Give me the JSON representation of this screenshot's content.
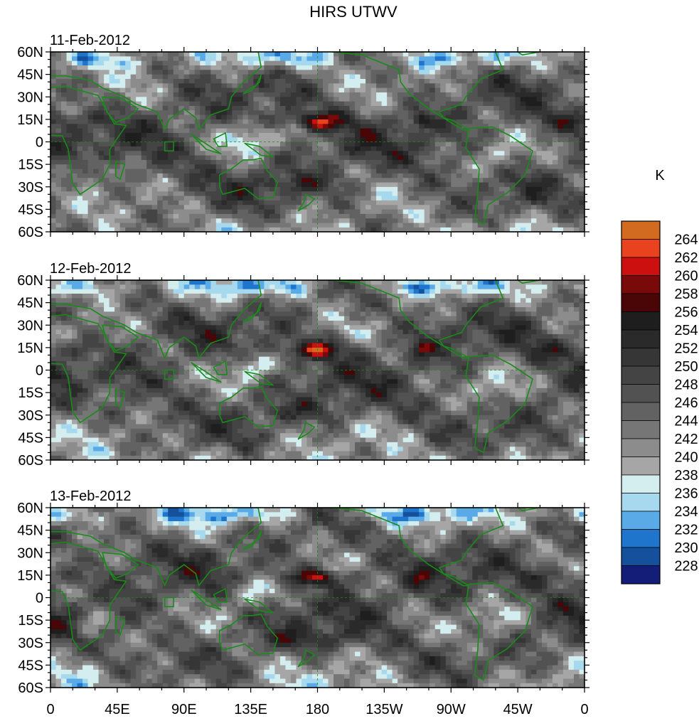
{
  "chart_data": {
    "type": "heatmap",
    "title": "HIRS UTWV",
    "units_label": "K",
    "panels": [
      {
        "date": "11-Feb-2012"
      },
      {
        "date": "12-Feb-2012"
      },
      {
        "date": "13-Feb-2012"
      }
    ],
    "x_ticks": [
      "0",
      "45E",
      "90E",
      "135E",
      "180",
      "135W",
      "90W",
      "45W",
      "0"
    ],
    "x_tick_values": [
      0,
      45,
      90,
      135,
      180,
      225,
      270,
      315,
      360
    ],
    "y_ticks": [
      "60N",
      "45N",
      "30N",
      "15N",
      "0",
      "15S",
      "30S",
      "45S",
      "60S"
    ],
    "y_tick_values": [
      60,
      45,
      30,
      15,
      0,
      -15,
      -30,
      -45,
      -60
    ],
    "xlim": [
      0,
      360
    ],
    "ylim": [
      -60,
      60
    ],
    "colorbar": {
      "labels": [
        "264",
        "262",
        "260",
        "258",
        "256",
        "254",
        "252",
        "250",
        "248",
        "246",
        "244",
        "242",
        "240",
        "238",
        "236",
        "234",
        "232",
        "230",
        "228"
      ],
      "colors": [
        "#d26b20",
        "#e8421e",
        "#cc1010",
        "#7a0a0a",
        "#4a0606",
        "#1e1e1e",
        "#2a2a2a",
        "#363636",
        "#444444",
        "#525252",
        "#626262",
        "#767676",
        "#8c8c8c",
        "#a6a6a6",
        "#d4eef0",
        "#a6d8ee",
        "#5aaae8",
        "#1f74cc",
        "#14509c",
        "#141e78"
      ]
    }
  }
}
